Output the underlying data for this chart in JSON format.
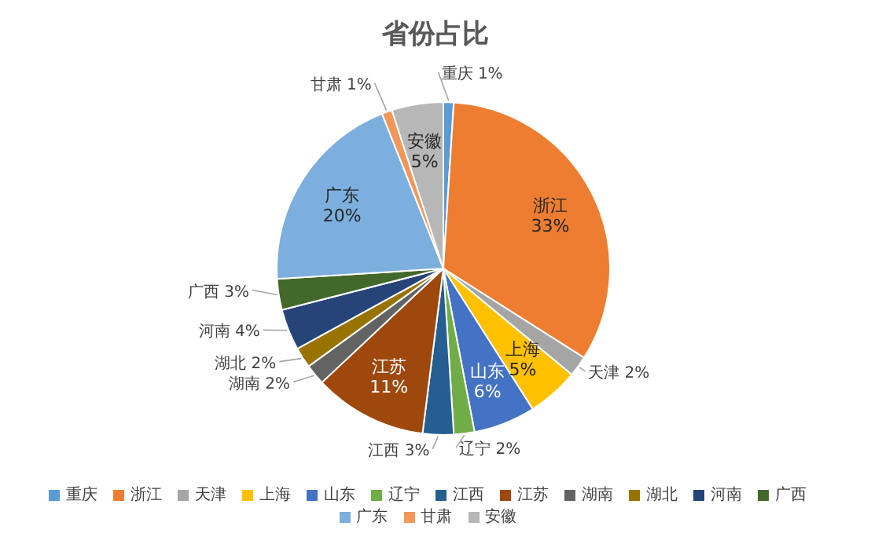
{
  "chart_data": {
    "type": "pie",
    "title": "省份占比",
    "categories": [
      "重庆",
      "浙江",
      "天津",
      "上海",
      "山东",
      "辽宁",
      "江西",
      "江苏",
      "湖南",
      "湖北",
      "河南",
      "广西",
      "广东",
      "甘肃",
      "安徽"
    ],
    "values": [
      1,
      33,
      2,
      5,
      6,
      2,
      3,
      11,
      2,
      2,
      4,
      3,
      20,
      1,
      5
    ],
    "value_labels": [
      "1%",
      "33%",
      "2%",
      "5%",
      "6%",
      "2%",
      "3%",
      "11%",
      "2%",
      "2%",
      "4%",
      "3%",
      "20%",
      "1%",
      "5%"
    ],
    "colors": [
      "#5b9bd5",
      "#ed7d31",
      "#a5a5a5",
      "#ffc000",
      "#4472c4",
      "#70ad47",
      "#255e91",
      "#9e480e",
      "#636363",
      "#997300",
      "#264478",
      "#43682b",
      "#7cafdd",
      "#f1975a",
      "#b7b7b7"
    ],
    "legend": "bottom"
  }
}
